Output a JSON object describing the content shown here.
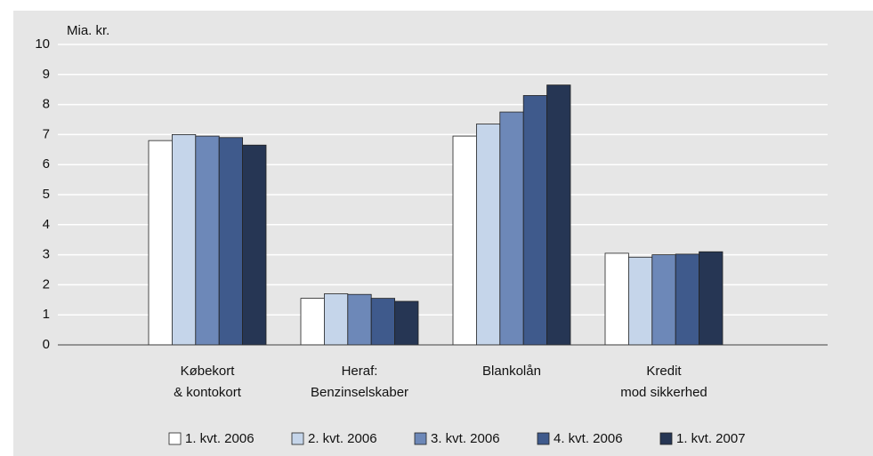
{
  "chart_data": {
    "type": "bar",
    "y_label": "Mia. kr.",
    "categories": [
      [
        "Købekort",
        "& kontokort"
      ],
      [
        "Heraf:",
        "Benzinselskaber"
      ],
      [
        "Blankolån"
      ],
      [
        "Kredit",
        "mod sikkerhed"
      ]
    ],
    "series": [
      {
        "name": "1. kvt. 2006",
        "color": "#ffffff",
        "values": [
          6.8,
          1.55,
          6.95,
          3.05
        ]
      },
      {
        "name": "2. kvt. 2006",
        "color": "#c5d5ea",
        "values": [
          7.0,
          1.7,
          7.35,
          2.92
        ]
      },
      {
        "name": "3. kvt. 2006",
        "color": "#6d88b8",
        "values": [
          6.95,
          1.68,
          7.75,
          3.0
        ]
      },
      {
        "name": "4. kvt. 2006",
        "color": "#3f5a8c",
        "values": [
          6.9,
          1.55,
          8.3,
          3.02
        ]
      },
      {
        "name": "1. kvt. 2007",
        "color": "#263654",
        "values": [
          6.65,
          1.45,
          8.65,
          3.1
        ]
      }
    ],
    "ylim": [
      0,
      10
    ],
    "yticks": [
      0,
      1,
      2,
      3,
      4,
      5,
      6,
      7,
      8,
      9,
      10
    ],
    "grid": true,
    "legend": "bottom"
  }
}
